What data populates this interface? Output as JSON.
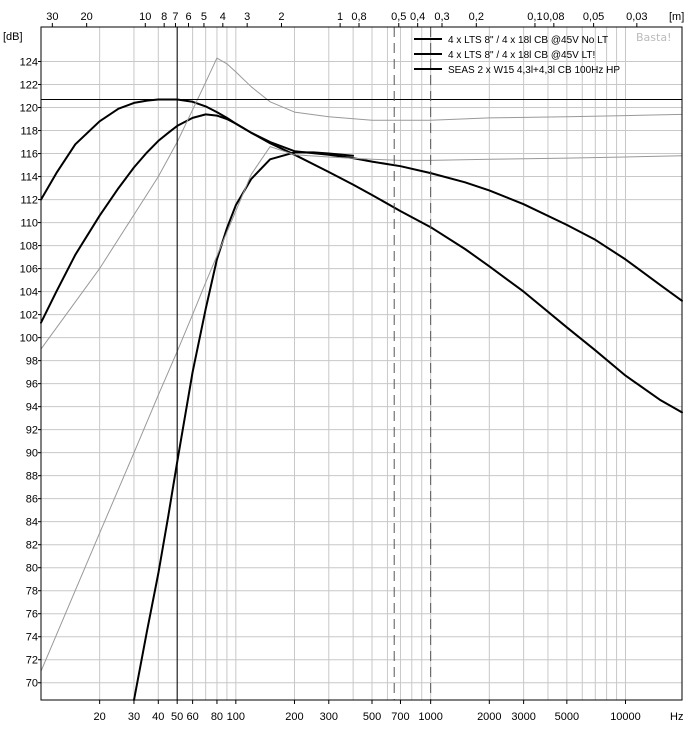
{
  "chart_data": {
    "type": "line",
    "ylabel": "[dB]",
    "xunit": "Hz",
    "top_unit": "[m]",
    "watermark": "Basta!",
    "x_scale": "log",
    "xlim": [
      10,
      19500
    ],
    "ylim": [
      68.5,
      127
    ],
    "y_ticks": [
      70,
      72,
      74,
      76,
      78,
      80,
      82,
      84,
      86,
      88,
      90,
      92,
      94,
      96,
      98,
      100,
      102,
      104,
      106,
      108,
      110,
      112,
      114,
      116,
      118,
      120,
      122,
      124
    ],
    "x_tick_labels": [
      {
        "f": 20,
        "label": "20"
      },
      {
        "f": 30,
        "label": "30"
      },
      {
        "f": 40,
        "label": "40"
      },
      {
        "f": 50,
        "label": "50"
      },
      {
        "f": 60,
        "label": "60"
      },
      {
        "f": 80,
        "label": "80"
      },
      {
        "f": 100,
        "label": "100"
      },
      {
        "f": 200,
        "label": "200"
      },
      {
        "f": 300,
        "label": "300"
      },
      {
        "f": 500,
        "label": "500"
      },
      {
        "f": 700,
        "label": "700"
      },
      {
        "f": 1000,
        "label": "1000"
      },
      {
        "f": 2000,
        "label": "2000"
      },
      {
        "f": 3000,
        "label": "3000"
      },
      {
        "f": 5000,
        "label": "5000"
      },
      {
        "f": 10000,
        "label": "10000"
      }
    ],
    "x_gridlines": [
      20,
      30,
      40,
      50,
      60,
      70,
      80,
      90,
      100,
      200,
      300,
      400,
      500,
      600,
      700,
      800,
      900,
      1000,
      2000,
      3000,
      4000,
      5000,
      6000,
      7000,
      8000,
      9000,
      10000
    ],
    "top_tick_labels": [
      {
        "m": 30,
        "label": "30"
      },
      {
        "m": 20,
        "label": "20"
      },
      {
        "m": 10,
        "label": "10"
      },
      {
        "m": 8,
        "label": "8"
      },
      {
        "m": 7,
        "label": "7"
      },
      {
        "m": 6,
        "label": "6"
      },
      {
        "m": 5,
        "label": "5"
      },
      {
        "m": 4,
        "label": "4"
      },
      {
        "m": 3,
        "label": "3"
      },
      {
        "m": 2,
        "label": "2"
      },
      {
        "m": 1,
        "label": "1"
      },
      {
        "m": 0.8,
        "label": "0,8"
      },
      {
        "m": 0.5,
        "label": "0,5"
      },
      {
        "m": 0.4,
        "label": "0,4"
      },
      {
        "m": 0.3,
        "label": "0,3"
      },
      {
        "m": 0.2,
        "label": "0,2"
      },
      {
        "m": 0.1,
        "label": "0,1"
      },
      {
        "m": 0.08,
        "label": "0,08"
      },
      {
        "m": 0.05,
        "label": "0,05"
      },
      {
        "m": 0.03,
        "label": "0,03"
      }
    ],
    "reference_lines": {
      "horizontal_db": 120.7,
      "vertical_hz": 50,
      "dashed_hz": [
        650,
        1000
      ]
    },
    "legend_position": "top-right",
    "series": [
      {
        "name": "4 x LTS 8\" / 4 x 18l CB @45V No LT",
        "color": "#000000",
        "x": [
          10,
          12,
          15,
          20,
          25,
          30,
          35,
          40,
          45,
          50,
          60,
          70,
          80,
          90,
          100,
          120,
          150,
          200,
          300,
          400,
          500,
          700,
          1000,
          1500,
          2000,
          3000,
          5000,
          7000,
          10000,
          15000,
          19500
        ],
        "y": [
          112,
          114.3,
          116.8,
          118.8,
          119.9,
          120.4,
          120.6,
          120.7,
          120.7,
          120.7,
          120.5,
          120.1,
          119.6,
          119.1,
          118.6,
          117.8,
          117,
          116.2,
          115.9,
          115.6,
          115.3,
          114.9,
          114.3,
          113.5,
          112.8,
          111.6,
          109.8,
          108.5,
          106.8,
          104.6,
          103.2
        ]
      },
      {
        "name": "4 x LTS 8\" / 4 x 18l CB @45V LT!",
        "color": "#000000",
        "x": [
          10,
          12,
          15,
          20,
          25,
          30,
          35,
          40,
          45,
          50,
          60,
          70,
          80,
          90,
          100,
          120,
          150,
          200,
          300,
          400,
          500,
          700,
          1000,
          1500,
          2000,
          3000,
          5000,
          7000,
          10000,
          15000,
          19500
        ],
        "y": [
          101.3,
          104,
          107.2,
          110.6,
          113,
          114.8,
          116.1,
          117.1,
          117.8,
          118.4,
          119.1,
          119.4,
          119.3,
          119,
          118.6,
          117.8,
          116.9,
          115.9,
          114.4,
          113.3,
          112.4,
          111,
          109.6,
          107.7,
          106.2,
          104,
          100.9,
          98.9,
          96.7,
          94.6,
          93.5
        ]
      },
      {
        "name": "SEAS 2 x W15 4,3l+4,3l CB 100Hz HP",
        "color": "#000000",
        "x": [
          30,
          35,
          40,
          45,
          50,
          60,
          70,
          80,
          90,
          100,
          120,
          150,
          200,
          250,
          300,
          400
        ],
        "y": [
          68.5,
          74.5,
          79.5,
          84.5,
          89.2,
          97,
          102.5,
          106.8,
          109.5,
          111.5,
          113.8,
          115.5,
          116.1,
          116.1,
          116,
          115.8
        ]
      },
      {
        "name": "",
        "color": "#999999",
        "x": [
          10,
          20,
          40,
          50,
          60,
          70,
          80,
          90,
          100,
          120,
          150,
          200,
          300,
          500,
          700,
          1000,
          2000,
          5000,
          10000,
          19500
        ],
        "y": [
          99,
          106,
          114,
          117,
          119.8,
          122.2,
          124.3,
          123.8,
          123.1,
          121.8,
          120.5,
          119.6,
          119.2,
          118.9,
          118.9,
          118.9,
          119.1,
          119.2,
          119.3,
          119.4
        ]
      },
      {
        "name": "",
        "color": "#999999",
        "x": [
          10,
          20,
          30,
          40,
          50,
          60,
          70,
          80,
          100,
          120,
          150,
          200,
          300,
          500,
          700,
          1000,
          2000,
          5000,
          10000,
          19500
        ],
        "y": [
          71,
          83,
          90,
          95,
          98.8,
          102,
          104.8,
          107.1,
          111,
          114.2,
          116.6,
          115.9,
          115.7,
          115.5,
          115.4,
          115.4,
          115.5,
          115.6,
          115.7,
          115.8
        ]
      }
    ]
  }
}
